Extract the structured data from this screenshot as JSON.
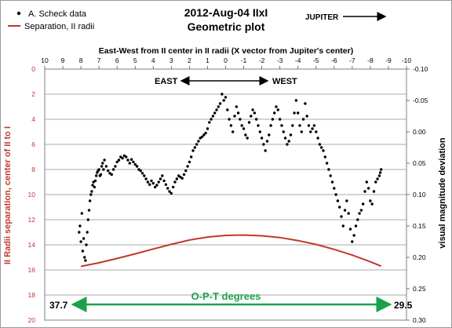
{
  "chart_data": {
    "type": "scatter",
    "title_line1": "2012-Aug-04 IIxI",
    "title_line2": "Geometric plot",
    "top_axis_label": "East-West from II center in II radii (X vector from Jupiter's center)",
    "top_axis": {
      "range": [
        10,
        -10
      ],
      "ticks": [
        "10",
        "9",
        "8",
        "7",
        "6",
        "5",
        "4",
        "3",
        "2",
        "1",
        "0",
        "-1",
        "-2",
        "-3",
        "-4",
        "-5",
        "-6",
        "-7",
        "-8",
        "-9",
        "-10"
      ]
    },
    "left_axis_label": "II Radii separation, center of II to I",
    "left_axis": {
      "range": [
        0,
        20
      ],
      "inverted": true,
      "ticks": [
        "0",
        "2",
        "4",
        "6",
        "8",
        "10",
        "12",
        "14",
        "16",
        "18",
        "20"
      ]
    },
    "right_axis_label": "visual magnitude deviation",
    "right_axis": {
      "range": [
        -0.1,
        0.3
      ],
      "inverted": true,
      "ticks": [
        "-0.10",
        "-0.05",
        "0.00",
        "0.05",
        "0.10",
        "0.15",
        "0.20",
        "0.25",
        "0.30"
      ]
    },
    "legend": [
      {
        "label": "A. Scheck data",
        "marker": "dot",
        "color": "#000000"
      },
      {
        "label": "Separation, II radii",
        "marker": "line",
        "color": "#c0392b"
      }
    ],
    "jupiter_label": "JUPITER",
    "east_label": "EAST",
    "west_label": "WEST",
    "opt_label": "O-P-T degrees",
    "opt_left_value": "37.7",
    "opt_right_value": "29.5",
    "grid": "horizontal",
    "separation_series": {
      "name": "Separation, II radii",
      "color": "#c0392b",
      "x": [
        8.0,
        7.0,
        6.0,
        5.0,
        4.0,
        3.0,
        2.0,
        1.0,
        0.0,
        -1.0,
        -2.0,
        -3.0,
        -4.0,
        -5.0,
        -6.0,
        -7.0,
        -8.0,
        -8.6
      ],
      "y": [
        15.72,
        15.43,
        15.09,
        14.72,
        14.33,
        13.96,
        13.62,
        13.38,
        13.25,
        13.22,
        13.28,
        13.42,
        13.66,
        13.97,
        14.36,
        14.82,
        15.35,
        15.7
      ]
    },
    "magnitude_data": {
      "name": "A. Scheck data",
      "color": "#000000",
      "points": [
        [
          8.1,
          0.16
        ],
        [
          8.05,
          0.15
        ],
        [
          8.0,
          0.175
        ],
        [
          7.95,
          0.13
        ],
        [
          7.9,
          0.19
        ],
        [
          7.85,
          0.17
        ],
        [
          7.8,
          0.2
        ],
        [
          7.75,
          0.205
        ],
        [
          7.7,
          0.18
        ],
        [
          7.65,
          0.16
        ],
        [
          7.6,
          0.14
        ],
        [
          7.55,
          0.125
        ],
        [
          7.5,
          0.11
        ],
        [
          7.45,
          0.1
        ],
        [
          7.4,
          0.095
        ],
        [
          7.35,
          0.085
        ],
        [
          7.3,
          0.08
        ],
        [
          7.25,
          0.088
        ],
        [
          7.2,
          0.078
        ],
        [
          7.15,
          0.07
        ],
        [
          7.1,
          0.065
        ],
        [
          7.05,
          0.062
        ],
        [
          7.0,
          0.06
        ],
        [
          6.95,
          0.07
        ],
        [
          6.9,
          0.068
        ],
        [
          6.85,
          0.055
        ],
        [
          6.8,
          0.05
        ],
        [
          6.75,
          0.06
        ],
        [
          6.7,
          0.045
        ],
        [
          6.6,
          0.055
        ],
        [
          6.5,
          0.062
        ],
        [
          6.4,
          0.066
        ],
        [
          6.3,
          0.068
        ],
        [
          6.2,
          0.06
        ],
        [
          6.1,
          0.055
        ],
        [
          6.0,
          0.048
        ],
        [
          5.9,
          0.045
        ],
        [
          5.8,
          0.04
        ],
        [
          5.7,
          0.042
        ],
        [
          5.6,
          0.038
        ],
        [
          5.5,
          0.04
        ],
        [
          5.4,
          0.045
        ],
        [
          5.3,
          0.05
        ],
        [
          5.2,
          0.044
        ],
        [
          5.1,
          0.048
        ],
        [
          5.0,
          0.052
        ],
        [
          4.9,
          0.055
        ],
        [
          4.8,
          0.06
        ],
        [
          4.7,
          0.062
        ],
        [
          4.6,
          0.066
        ],
        [
          4.5,
          0.07
        ],
        [
          4.4,
          0.075
        ],
        [
          4.3,
          0.08
        ],
        [
          4.2,
          0.084
        ],
        [
          4.1,
          0.078
        ],
        [
          4.0,
          0.082
        ],
        [
          3.9,
          0.088
        ],
        [
          3.8,
          0.085
        ],
        [
          3.7,
          0.08
        ],
        [
          3.6,
          0.075
        ],
        [
          3.5,
          0.07
        ],
        [
          3.4,
          0.078
        ],
        [
          3.3,
          0.084
        ],
        [
          3.2,
          0.09
        ],
        [
          3.1,
          0.095
        ],
        [
          3.0,
          0.098
        ],
        [
          2.9,
          0.088
        ],
        [
          2.8,
          0.08
        ],
        [
          2.7,
          0.075
        ],
        [
          2.6,
          0.07
        ],
        [
          2.5,
          0.072
        ],
        [
          2.4,
          0.074
        ],
        [
          2.3,
          0.068
        ],
        [
          2.2,
          0.062
        ],
        [
          2.1,
          0.055
        ],
        [
          2.0,
          0.048
        ],
        [
          1.9,
          0.04
        ],
        [
          1.8,
          0.03
        ],
        [
          1.7,
          0.025
        ],
        [
          1.6,
          0.02
        ],
        [
          1.5,
          0.015
        ],
        [
          1.4,
          0.01
        ],
        [
          1.3,
          0.008
        ],
        [
          1.2,
          0.005
        ],
        [
          1.1,
          0.002
        ],
        [
          1.0,
          -0.005
        ],
        [
          0.9,
          -0.015
        ],
        [
          0.8,
          -0.02
        ],
        [
          0.7,
          -0.025
        ],
        [
          0.6,
          -0.03
        ],
        [
          0.5,
          -0.035
        ],
        [
          0.4,
          -0.04
        ],
        [
          0.3,
          -0.045
        ],
        [
          0.2,
          -0.06
        ],
        [
          0.1,
          -0.05
        ],
        [
          0.0,
          -0.055
        ],
        [
          -0.1,
          -0.035
        ],
        [
          -0.2,
          -0.02
        ],
        [
          -0.3,
          -0.01
        ],
        [
          -0.4,
          0.0
        ],
        [
          -0.5,
          -0.025
        ],
        [
          -0.6,
          -0.04
        ],
        [
          -0.7,
          -0.03
        ],
        [
          -0.8,
          -0.02
        ],
        [
          -0.9,
          -0.01
        ],
        [
          -1.0,
          -0.005
        ],
        [
          -1.1,
          0.005
        ],
        [
          -1.2,
          0.01
        ],
        [
          -1.3,
          -0.015
        ],
        [
          -1.4,
          -0.025
        ],
        [
          -1.5,
          -0.035
        ],
        [
          -1.6,
          -0.03
        ],
        [
          -1.7,
          -0.02
        ],
        [
          -1.8,
          -0.01
        ],
        [
          -1.9,
          0.0
        ],
        [
          -2.0,
          0.01
        ],
        [
          -2.1,
          0.02
        ],
        [
          -2.2,
          0.03
        ],
        [
          -2.3,
          0.015
        ],
        [
          -2.4,
          0.005
        ],
        [
          -2.5,
          -0.01
        ],
        [
          -2.6,
          -0.02
        ],
        [
          -2.7,
          -0.03
        ],
        [
          -2.8,
          -0.04
        ],
        [
          -2.9,
          -0.035
        ],
        [
          -3.0,
          -0.02
        ],
        [
          -3.1,
          -0.01
        ],
        [
          -3.2,
          0.0
        ],
        [
          -3.3,
          0.01
        ],
        [
          -3.4,
          0.02
        ],
        [
          -3.5,
          0.015
        ],
        [
          -3.6,
          0.005
        ],
        [
          -3.7,
          -0.01
        ],
        [
          -3.8,
          -0.03
        ],
        [
          -3.9,
          -0.05
        ],
        [
          -4.0,
          -0.03
        ],
        [
          -4.1,
          -0.01
        ],
        [
          -4.2,
          0.0
        ],
        [
          -4.3,
          -0.02
        ],
        [
          -4.4,
          -0.045
        ],
        [
          -4.5,
          -0.025
        ],
        [
          -4.6,
          -0.01
        ],
        [
          -4.7,
          0.0
        ],
        [
          -4.8,
          -0.005
        ],
        [
          -4.9,
          -0.01
        ],
        [
          -5.0,
          0.0
        ],
        [
          -5.1,
          0.01
        ],
        [
          -5.2,
          0.02
        ],
        [
          -5.3,
          0.025
        ],
        [
          -5.4,
          0.03
        ],
        [
          -5.5,
          0.04
        ],
        [
          -5.6,
          0.05
        ],
        [
          -5.7,
          0.06
        ],
        [
          -5.8,
          0.07
        ],
        [
          -5.9,
          0.08
        ],
        [
          -6.0,
          0.09
        ],
        [
          -6.1,
          0.1
        ],
        [
          -6.2,
          0.11
        ],
        [
          -6.3,
          0.12
        ],
        [
          -6.4,
          0.135
        ],
        [
          -6.5,
          0.15
        ],
        [
          -6.6,
          0.125
        ],
        [
          -6.7,
          0.11
        ],
        [
          -6.8,
          0.13
        ],
        [
          -6.9,
          0.155
        ],
        [
          -7.0,
          0.175
        ],
        [
          -7.1,
          0.165
        ],
        [
          -7.2,
          0.15
        ],
        [
          -7.3,
          0.14
        ],
        [
          -7.4,
          0.13
        ],
        [
          -7.5,
          0.125
        ],
        [
          -7.6,
          0.115
        ],
        [
          -7.7,
          0.095
        ],
        [
          -7.8,
          0.08
        ],
        [
          -7.9,
          0.09
        ],
        [
          -8.0,
          0.11
        ],
        [
          -8.1,
          0.115
        ],
        [
          -8.2,
          0.095
        ],
        [
          -8.3,
          0.08
        ],
        [
          -8.4,
          0.075
        ],
        [
          -8.5,
          0.07
        ],
        [
          -8.55,
          0.065
        ],
        [
          -8.6,
          0.06
        ]
      ]
    }
  }
}
